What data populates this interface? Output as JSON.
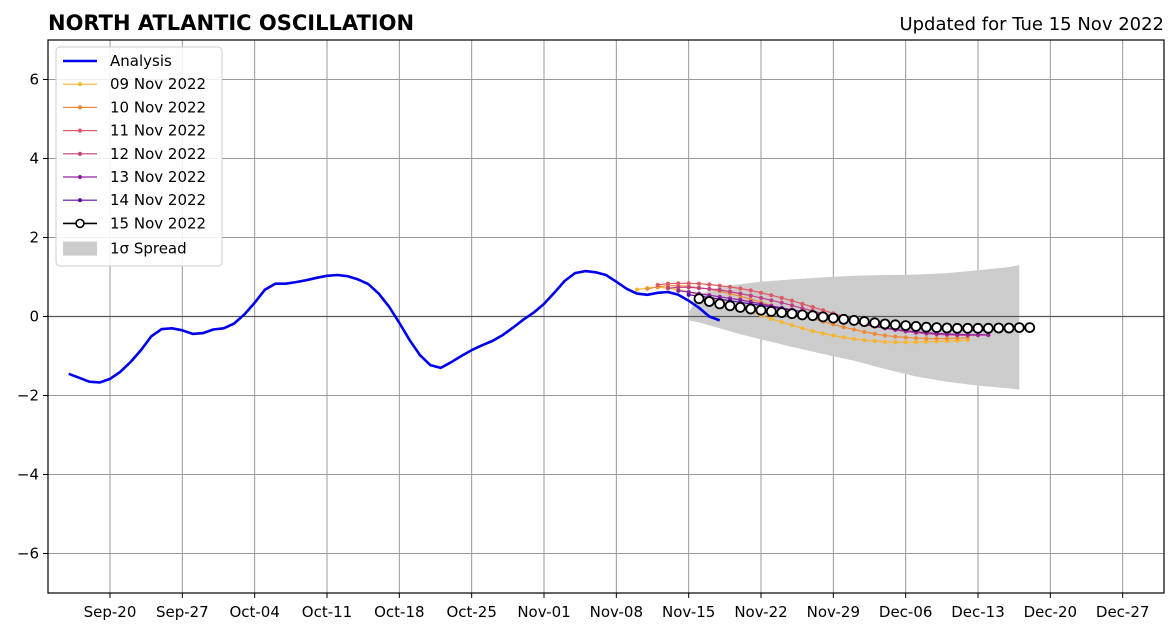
{
  "chart_data": {
    "type": "line",
    "title": "NORTH ATLANTIC OSCILLATION",
    "subtitle": "Updated for Tue 15 Nov 2022",
    "xlabel": "",
    "ylabel": "",
    "xlim": [
      "2022-09-14",
      "2022-12-31"
    ],
    "ylim": [
      -7,
      7
    ],
    "grid": true,
    "legend_position": "top-left",
    "x_ticks": [
      {
        "date": "2022-09-20",
        "label": "Sep-20"
      },
      {
        "date": "2022-09-27",
        "label": "Sep-27"
      },
      {
        "date": "2022-10-04",
        "label": "Oct-04"
      },
      {
        "date": "2022-10-11",
        "label": "Oct-11"
      },
      {
        "date": "2022-10-18",
        "label": "Oct-18"
      },
      {
        "date": "2022-10-25",
        "label": "Oct-25"
      },
      {
        "date": "2022-11-01",
        "label": "Nov-01"
      },
      {
        "date": "2022-11-08",
        "label": "Nov-08"
      },
      {
        "date": "2022-11-15",
        "label": "Nov-15"
      },
      {
        "date": "2022-11-22",
        "label": "Nov-22"
      },
      {
        "date": "2022-11-29",
        "label": "Nov-29"
      },
      {
        "date": "2022-12-06",
        "label": "Dec-06"
      },
      {
        "date": "2022-12-13",
        "label": "Dec-13"
      },
      {
        "date": "2022-12-20",
        "label": "Dec-20"
      },
      {
        "date": "2022-12-27",
        "label": "Dec-27"
      }
    ],
    "y_ticks": [
      {
        "value": -6,
        "label": "−6"
      },
      {
        "value": -4,
        "label": "−4"
      },
      {
        "value": -2,
        "label": "−2"
      },
      {
        "value": 0,
        "label": "0"
      },
      {
        "value": 2,
        "label": "2"
      },
      {
        "value": 4,
        "label": "4"
      },
      {
        "value": 6,
        "label": "6"
      }
    ],
    "analysis": {
      "name": "Analysis",
      "color": "#0000ee",
      "start": "2022-09-16",
      "values": [
        -1.45,
        -1.55,
        -1.65,
        -1.67,
        -1.58,
        -1.4,
        -1.15,
        -0.85,
        -0.5,
        -0.32,
        -0.3,
        -0.35,
        -0.44,
        -0.42,
        -0.33,
        -0.3,
        -0.18,
        0.05,
        0.35,
        0.68,
        0.83,
        0.83,
        0.87,
        0.92,
        0.98,
        1.03,
        1.05,
        1.02,
        0.94,
        0.82,
        0.58,
        0.25,
        -0.16,
        -0.6,
        -0.98,
        -1.23,
        -1.3,
        -1.16,
        -1.0,
        -0.85,
        -0.73,
        -0.62,
        -0.47,
        -0.28,
        -0.08,
        0.1,
        0.32,
        0.6,
        0.9,
        1.1,
        1.15,
        1.12,
        1.05,
        0.88,
        0.7,
        0.58,
        0.55,
        0.6,
        0.62,
        0.55,
        0.4,
        0.22,
        0.0,
        -0.1
      ]
    },
    "forecasts": [
      {
        "name": "09 Nov 2022",
        "color": "#f8b630",
        "start": "2022-11-10",
        "values": [
          0.68,
          0.72,
          0.74,
          0.72,
          0.68,
          0.62,
          0.55,
          0.47,
          0.39,
          0.3,
          0.21,
          0.12,
          0.03,
          -0.06,
          -0.14,
          -0.22,
          -0.3,
          -0.37,
          -0.43,
          -0.48,
          -0.53,
          -0.57,
          -0.6,
          -0.62,
          -0.64,
          -0.65,
          -0.65,
          -0.65,
          -0.64,
          -0.63,
          -0.62,
          -0.61,
          -0.6
        ]
      },
      {
        "name": "10 Nov 2022",
        "color": "#ef8a3a",
        "start": "2022-11-11",
        "values": [
          0.7,
          0.75,
          0.78,
          0.78,
          0.76,
          0.73,
          0.69,
          0.64,
          0.58,
          0.51,
          0.44,
          0.36,
          0.28,
          0.19,
          0.11,
          0.03,
          -0.05,
          -0.13,
          -0.2,
          -0.27,
          -0.33,
          -0.39,
          -0.44,
          -0.48,
          -0.51,
          -0.53,
          -0.55,
          -0.56,
          -0.56,
          -0.56,
          -0.55,
          -0.54
        ]
      },
      {
        "name": "11 Nov 2022",
        "color": "#de5a65",
        "start": "2022-11-12",
        "values": [
          0.8,
          0.83,
          0.84,
          0.84,
          0.83,
          0.81,
          0.78,
          0.75,
          0.71,
          0.66,
          0.6,
          0.54,
          0.47,
          0.4,
          0.32,
          0.24,
          0.16,
          0.08,
          0.0,
          -0.08,
          -0.15,
          -0.22,
          -0.28,
          -0.33,
          -0.37,
          -0.41,
          -0.43,
          -0.45,
          -0.46,
          -0.47,
          -0.47,
          -0.47
        ]
      },
      {
        "name": "12 Nov 2022",
        "color": "#c03f87",
        "start": "2022-11-13",
        "values": [
          0.72,
          0.74,
          0.74,
          0.72,
          0.7,
          0.67,
          0.63,
          0.58,
          0.53,
          0.47,
          0.41,
          0.35,
          0.28,
          0.21,
          0.14,
          0.07,
          0.0,
          -0.07,
          -0.13,
          -0.19,
          -0.25,
          -0.3,
          -0.34,
          -0.38,
          -0.41,
          -0.43,
          -0.45,
          -0.46,
          -0.47,
          -0.47,
          -0.47,
          -0.47
        ]
      },
      {
        "name": "13 Nov 2022",
        "color": "#9422a0",
        "start": "2022-11-14",
        "values": [
          0.65,
          0.62,
          0.58,
          0.54,
          0.5,
          0.46,
          0.42,
          0.37,
          0.32,
          0.27,
          0.22,
          0.17,
          0.12,
          0.06,
          0.01,
          -0.05,
          -0.1,
          -0.15,
          -0.2,
          -0.25,
          -0.29,
          -0.33,
          -0.36,
          -0.39,
          -0.41,
          -0.43,
          -0.44,
          -0.45,
          -0.46,
          -0.46,
          -0.46
        ]
      },
      {
        "name": "14 Nov 2022",
        "color": "#5a0fa0",
        "start": "2022-11-15",
        "values": [
          0.55,
          0.52,
          0.48,
          0.44,
          0.4,
          0.36,
          0.32,
          0.28,
          0.24,
          0.2,
          0.16,
          0.12,
          0.08,
          0.04,
          0.0,
          -0.04,
          -0.08,
          -0.12,
          -0.16,
          -0.19,
          -0.22,
          -0.25,
          -0.27,
          -0.29,
          -0.31,
          -0.33,
          -0.34,
          -0.35,
          -0.36,
          -0.36
        ]
      },
      {
        "name": "15 Nov 2022",
        "color": "#000000",
        "marker": "open-circle",
        "start": "2022-11-16",
        "values": [
          0.45,
          0.38,
          0.32,
          0.27,
          0.23,
          0.19,
          0.16,
          0.13,
          0.1,
          0.07,
          0.04,
          0.02,
          -0.01,
          -0.04,
          -0.07,
          -0.1,
          -0.13,
          -0.16,
          -0.19,
          -0.21,
          -0.23,
          -0.25,
          -0.27,
          -0.28,
          -0.29,
          -0.3,
          -0.3,
          -0.3,
          -0.3,
          -0.29,
          -0.29,
          -0.28,
          -0.28
        ]
      }
    ],
    "spread": {
      "name": "1σ Spread",
      "color": "#cccccc",
      "dates": [
        "2022-11-15",
        "2022-11-16",
        "2022-11-18",
        "2022-11-20",
        "2022-11-22",
        "2022-11-25",
        "2022-11-28",
        "2022-12-01",
        "2022-12-04",
        "2022-12-07",
        "2022-12-10",
        "2022-12-13",
        "2022-12-16",
        "2022-12-17"
      ],
      "upper": [
        0.1,
        0.55,
        0.75,
        0.82,
        0.88,
        0.94,
        0.99,
        1.03,
        1.05,
        1.06,
        1.1,
        1.17,
        1.25,
        1.3
      ],
      "lower": [
        -0.1,
        -0.15,
        -0.3,
        -0.45,
        -0.58,
        -0.77,
        -0.95,
        -1.12,
        -1.33,
        -1.52,
        -1.65,
        -1.75,
        -1.82,
        -1.85
      ]
    }
  }
}
